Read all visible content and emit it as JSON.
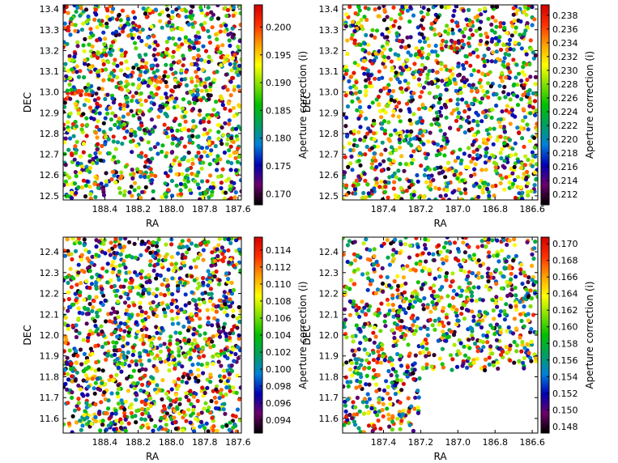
{
  "chart_data": [
    {
      "type": "scatter",
      "title": "",
      "xlabel": "RA",
      "ylabel": "DEC",
      "colorbar_label": "Aperture correction (i)",
      "xlim": [
        188.65,
        187.58
      ],
      "ylim": [
        12.48,
        13.42
      ],
      "xticks": [
        "188.4",
        "188.2",
        "188.0",
        "187.8",
        "187.6"
      ],
      "xtick_values": [
        188.4,
        188.2,
        188.0,
        187.8,
        187.6
      ],
      "yticks": [
        "12.5",
        "12.6",
        "12.7",
        "12.8",
        "12.9",
        "13.0",
        "13.1",
        "13.2",
        "13.3",
        "13.4"
      ],
      "ytick_values": [
        12.5,
        12.6,
        12.7,
        12.8,
        12.9,
        13.0,
        13.1,
        13.2,
        13.3,
        13.4
      ],
      "clim": [
        0.168,
        0.204
      ],
      "cticks": [
        "0.170",
        "0.175",
        "0.180",
        "0.185",
        "0.190",
        "0.195",
        "0.200"
      ],
      "ctick_values": [
        0.17,
        0.175,
        0.18,
        0.185,
        0.19,
        0.195,
        0.2
      ],
      "colormap": "nipy_spectral",
      "n_points": 1300,
      "seed": 11,
      "note": "dense uniformly distributed points over the full field"
    },
    {
      "type": "scatter",
      "title": "",
      "xlabel": "RA",
      "ylabel": "DEC",
      "colorbar_label": "Aperture correction (i)",
      "xlim": [
        187.62,
        186.57
      ],
      "ylim": [
        12.48,
        13.42
      ],
      "xticks": [
        "187.4",
        "187.2",
        "187.0",
        "186.8",
        "186.6"
      ],
      "xtick_values": [
        187.4,
        187.2,
        187.0,
        186.8,
        186.6
      ],
      "yticks": [
        "12.5",
        "12.6",
        "12.7",
        "12.8",
        "12.9",
        "13.0",
        "13.1",
        "13.2",
        "13.3",
        "13.4"
      ],
      "ytick_values": [
        12.5,
        12.6,
        12.7,
        12.8,
        12.9,
        13.0,
        13.1,
        13.2,
        13.3,
        13.4
      ],
      "clim": [
        0.2105,
        0.2395
      ],
      "cticks": [
        "0.212",
        "0.214",
        "0.216",
        "0.218",
        "0.220",
        "0.222",
        "0.224",
        "0.226",
        "0.228",
        "0.230",
        "0.232",
        "0.234",
        "0.236",
        "0.238"
      ],
      "ctick_values": [
        0.212,
        0.214,
        0.216,
        0.218,
        0.22,
        0.222,
        0.224,
        0.226,
        0.228,
        0.23,
        0.232,
        0.234,
        0.236,
        0.238
      ],
      "colormap": "nipy_spectral",
      "n_points": 1300,
      "seed": 23,
      "note": "dense uniformly distributed points over the full field"
    },
    {
      "type": "scatter",
      "title": "",
      "xlabel": "RA",
      "ylabel": "DEC",
      "colorbar_label": "Aperture correction (i)",
      "xlim": [
        188.65,
        187.58
      ],
      "ylim": [
        11.53,
        12.47
      ],
      "xticks": [
        "188.4",
        "188.2",
        "188.0",
        "187.8",
        "187.6"
      ],
      "xtick_values": [
        188.4,
        188.2,
        188.0,
        187.8,
        187.6
      ],
      "yticks": [
        "11.6",
        "11.7",
        "11.8",
        "11.9",
        "12.0",
        "12.1",
        "12.2",
        "12.3",
        "12.4"
      ],
      "ytick_values": [
        11.6,
        11.7,
        11.8,
        11.9,
        12.0,
        12.1,
        12.2,
        12.3,
        12.4
      ],
      "clim": [
        0.0925,
        0.1155
      ],
      "cticks": [
        "0.094",
        "0.096",
        "0.098",
        "0.100",
        "0.102",
        "0.104",
        "0.106",
        "0.108",
        "0.110",
        "0.112",
        "0.114"
      ],
      "ctick_values": [
        0.094,
        0.096,
        0.098,
        0.1,
        0.102,
        0.104,
        0.106,
        0.108,
        0.11,
        0.112,
        0.114
      ],
      "colormap": "nipy_spectral",
      "n_points": 1400,
      "seed": 37,
      "note": "dense uniformly distributed points over the full field"
    },
    {
      "type": "scatter",
      "title": "",
      "xlabel": "RA",
      "ylabel": "DEC",
      "colorbar_label": "Aperture correction (i)",
      "xlim": [
        187.62,
        186.57
      ],
      "ylim": [
        11.53,
        12.47
      ],
      "xticks": [
        "187.4",
        "187.2",
        "187.0",
        "186.8",
        "186.6"
      ],
      "xtick_values": [
        187.4,
        187.2,
        187.0,
        186.8,
        186.6
      ],
      "yticks": [
        "11.6",
        "11.7",
        "11.8",
        "11.9",
        "12.0",
        "12.1",
        "12.2",
        "12.3",
        "12.4"
      ],
      "ytick_values": [
        11.6,
        11.7,
        11.8,
        11.9,
        12.0,
        12.1,
        12.2,
        12.3,
        12.4
      ],
      "clim": [
        0.1472,
        0.1708
      ],
      "cticks": [
        "0.148",
        "0.150",
        "0.152",
        "0.154",
        "0.156",
        "0.158",
        "0.160",
        "0.162",
        "0.164",
        "0.166",
        "0.168",
        "0.170"
      ],
      "ctick_values": [
        0.148,
        0.15,
        0.152,
        0.154,
        0.156,
        0.158,
        0.16,
        0.162,
        0.164,
        0.166,
        0.168,
        0.17
      ],
      "colormap": "nipy_spectral",
      "n_points": 1000,
      "seed": 53,
      "empty_region": {
        "ra_max": 187.2,
        "dec_max": 11.83
      },
      "note": "points absent in the lower-right region (RA < 187.2, DEC < ~11.83)"
    }
  ],
  "colors": {
    "colormap_stops": [
      "#000000",
      "#6a006a",
      "#0000b4",
      "#0080d8",
      "#00a060",
      "#00c000",
      "#80e000",
      "#ffff00",
      "#ffa000",
      "#ff3000",
      "#d00000"
    ]
  }
}
